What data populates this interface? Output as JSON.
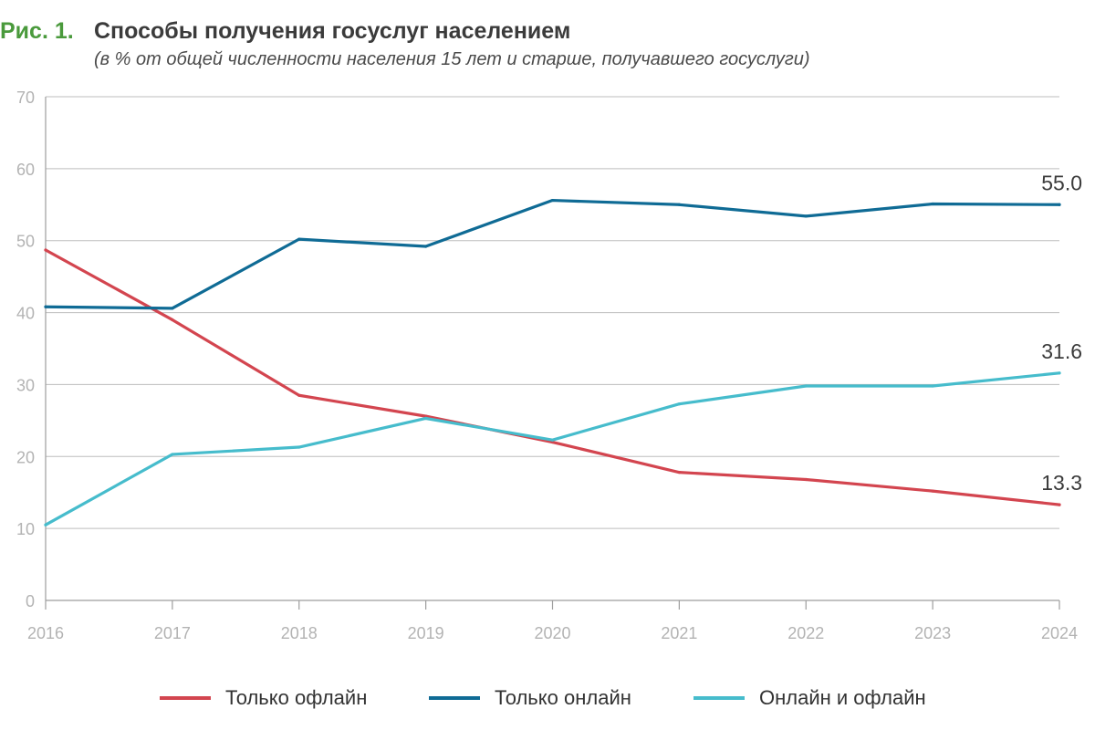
{
  "header": {
    "figure_label": "Рис. 1.",
    "title": "Способы получения госуслуг населением",
    "subtitle": "(в % от общей численности населения 15 лет и старше, получавшего госуслуги)"
  },
  "chart_data": {
    "type": "line",
    "title": "Способы получения госуслуг населением",
    "subtitle": "(в % от общей численности населения 15 лет и старше, получавшего госуслуги)",
    "x": [
      "2016",
      "2017",
      "2018",
      "2019",
      "2020",
      "2021",
      "2022",
      "2023",
      "2024"
    ],
    "ylim": [
      0,
      70
    ],
    "yticks": [
      "0",
      "10",
      "20",
      "30",
      "40",
      "50",
      "60",
      "70"
    ],
    "grid": true,
    "legend_position": "bottom",
    "series": [
      {
        "name": "Только офлайн",
        "color": "#d3454f",
        "values": [
          48.7,
          39.0,
          28.5,
          25.6,
          22.0,
          17.8,
          16.8,
          15.2,
          13.3
        ],
        "end_label": "13.3"
      },
      {
        "name": "Только онлайн",
        "color": "#0f6b95",
        "values": [
          40.8,
          40.6,
          50.2,
          49.2,
          55.6,
          55.0,
          53.4,
          55.1,
          55.0
        ],
        "end_label": "55.0"
      },
      {
        "name": "Онлайн и офлайн",
        "color": "#46bccc",
        "values": [
          10.5,
          20.3,
          21.3,
          25.3,
          22.3,
          27.3,
          29.8,
          29.8,
          31.6
        ],
        "end_label": "31.6"
      }
    ]
  },
  "legend": {
    "items": [
      {
        "label": "Только офлайн",
        "color": "#d3454f"
      },
      {
        "label": "Только онлайн",
        "color": "#0f6b95"
      },
      {
        "label": "Онлайн и офлайн",
        "color": "#46bccc"
      }
    ]
  },
  "colors": {
    "figure_label": "#4a9a3c",
    "title": "#3b3b3b",
    "grid": "#bdbdbd",
    "tick_text": "#b3b3b3"
  }
}
